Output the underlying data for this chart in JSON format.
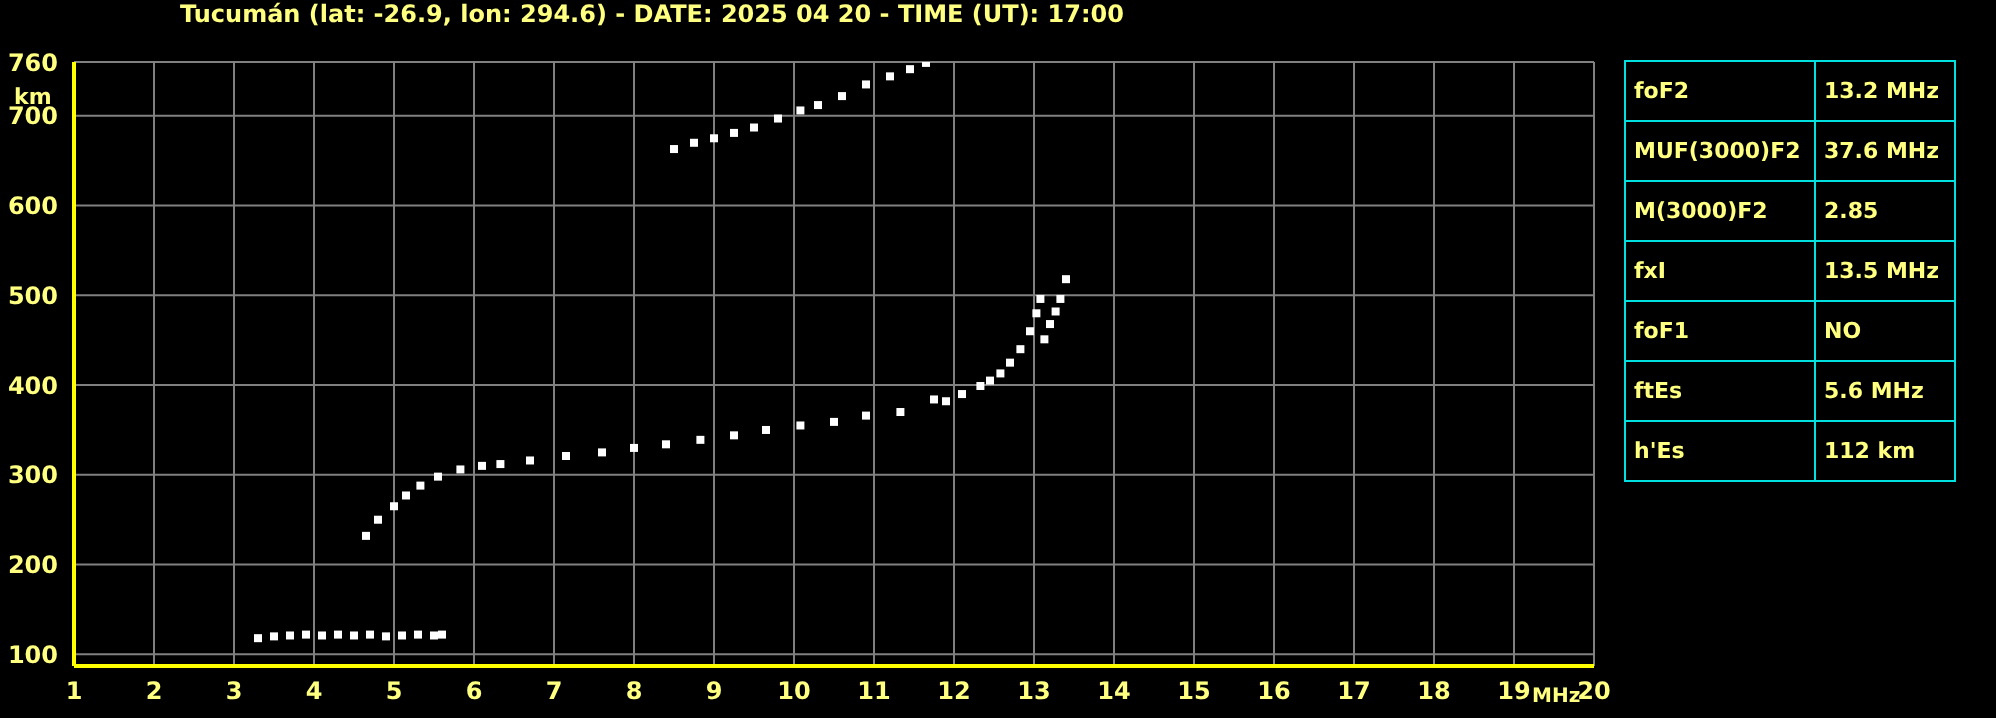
{
  "chart_data": {
    "type": "scatter",
    "title": "Tucumán (lat: -26.9, lon: 294.6) - DATE: 2025 04 20 - TIME (UT): 17:00",
    "xlabel": "MHz",
    "ylabel": "km",
    "xlim": [
      1,
      20
    ],
    "xticks": [
      1,
      2,
      3,
      4,
      5,
      6,
      7,
      8,
      9,
      10,
      11,
      12,
      13,
      14,
      15,
      16,
      17,
      18,
      19,
      20
    ],
    "ylim": [
      87,
      760
    ],
    "yticks": [
      100,
      200,
      300,
      400,
      500,
      600,
      700,
      760
    ],
    "grid": true,
    "marker": "square",
    "series": [
      {
        "color": "#ffffff",
        "x": [
          4.65,
          4.8,
          5.0,
          5.15,
          5.33,
          5.55,
          5.83,
          6.1,
          6.33,
          6.7,
          7.15,
          7.6,
          8.0,
          8.4,
          8.83,
          9.25,
          9.65,
          10.08,
          10.5,
          10.9,
          11.33,
          11.75,
          11.9,
          12.1,
          12.33,
          12.45,
          12.58,
          12.7,
          12.83,
          12.95,
          13.03,
          13.08
        ],
        "values": [
          232,
          250,
          265,
          277,
          288,
          298,
          306,
          310,
          312,
          316,
          321,
          325,
          330,
          334,
          339,
          344,
          350,
          355,
          359,
          366,
          370,
          384,
          382,
          390,
          399,
          405,
          413,
          425,
          440,
          460,
          480,
          496
        ]
      },
      {
        "color": "#ffffff",
        "x": [
          13.13,
          13.2,
          13.27,
          13.33,
          13.4
        ],
        "values": [
          451,
          468,
          482,
          496,
          518
        ]
      },
      {
        "color": "#ffffff",
        "x": [
          3.3,
          3.5,
          3.7,
          3.9,
          4.1,
          4.3,
          4.5,
          4.7,
          4.9,
          5.1,
          5.3,
          5.5,
          5.6
        ],
        "values": [
          118,
          120,
          121,
          122,
          121,
          122,
          121,
          122,
          120,
          121,
          122,
          121,
          122
        ]
      },
      {
        "color": "#ffffff",
        "x": [
          8.5,
          8.75,
          9.0,
          9.25,
          9.5,
          9.8,
          10.08,
          10.3,
          10.6,
          10.9,
          11.2,
          11.45,
          11.65
        ],
        "values": [
          663,
          670,
          675,
          681,
          687,
          697,
          706,
          712,
          722,
          735,
          744,
          752,
          759
        ]
      }
    ],
    "annotations": [
      "foF2",
      "13.2 MHz",
      "MUF(3000)F2",
      "37.6 MHz",
      "M(3000)F2",
      "2.85",
      "fxI",
      "13.5 MHz",
      "foF1",
      "NO",
      "ftEs",
      "5.6 MHz",
      "h'Es",
      "112 km"
    ]
  }
}
